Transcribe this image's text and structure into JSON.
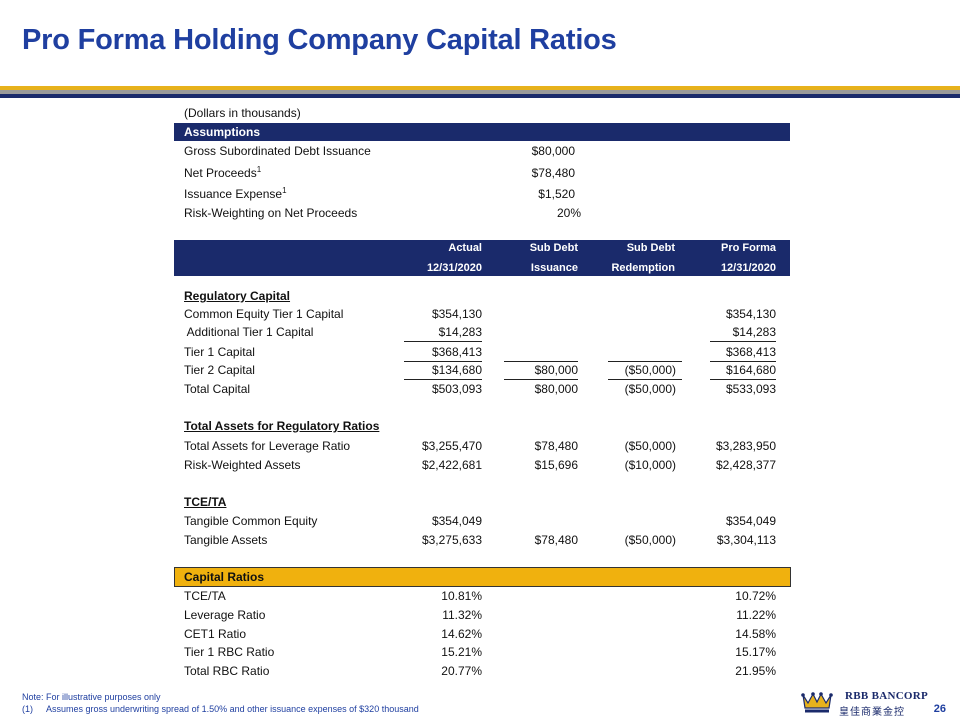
{
  "page": {
    "title": "Pro Forma Holding Company Capital Ratios",
    "page_number": "26"
  },
  "colors": {
    "navy": "#1a2a6b",
    "blue": "#1f3fa0",
    "gold": "#f0b10e"
  },
  "units_note": "(Dollars in thousands)",
  "assumptions": {
    "header": "Assumptions",
    "rows": [
      {
        "label": "Gross Subordinated Debt Issuance",
        "sup": "",
        "value": "$80,000"
      },
      {
        "label": "Net Proceeds",
        "sup": "1",
        "value": "$78,480"
      },
      {
        "label": "Issuance Expense",
        "sup": "1",
        "value": "$1,520"
      },
      {
        "label": "Risk-Weighting on Net Proceeds",
        "sup": "",
        "value": "20%"
      }
    ]
  },
  "columns": [
    {
      "line1": "Actual",
      "line2": "12/31/2020"
    },
    {
      "line1": "Sub Debt",
      "line2": "Issuance"
    },
    {
      "line1": "Sub Debt",
      "line2": "Redemption"
    },
    {
      "line1": "Pro Forma",
      "line2": "12/31/2020"
    }
  ],
  "regulatory_capital": {
    "header": "Regulatory Capital",
    "rows": [
      {
        "label": "Common Equity Tier 1 Capital",
        "values": [
          "$354,130",
          "",
          "",
          "$354,130"
        ]
      },
      {
        "label": " Additional Tier 1 Capital",
        "values": [
          "$14,283",
          "",
          "",
          "$14,283"
        ]
      },
      {
        "label": "Tier 1 Capital",
        "values": [
          "$368,413",
          "",
          "",
          "$368,413"
        ]
      },
      {
        "label": "Tier 2 Capital",
        "values": [
          "$134,680",
          "$80,000",
          "($50,000)",
          "$164,680"
        ]
      },
      {
        "label": "Total Capital",
        "values": [
          "$503,093",
          "$80,000",
          "($50,000)",
          "$533,093"
        ]
      }
    ]
  },
  "total_assets": {
    "header": "Total Assets for Regulatory Ratios",
    "rows": [
      {
        "label": "Total Assets for Leverage Ratio",
        "values": [
          "$3,255,470",
          "$78,480",
          "($50,000)",
          "$3,283,950"
        ]
      },
      {
        "label": "Risk-Weighted Assets",
        "values": [
          "$2,422,681",
          "$15,696",
          "($10,000)",
          "$2,428,377"
        ]
      }
    ]
  },
  "tce_ta": {
    "header": "TCE/TA",
    "rows": [
      {
        "label": "Tangible Common Equity",
        "values": [
          "$354,049",
          "",
          "",
          "$354,049"
        ]
      },
      {
        "label": "Tangible Assets",
        "values": [
          "$3,275,633",
          "$78,480",
          "($50,000)",
          "$3,304,113"
        ]
      }
    ]
  },
  "capital_ratios": {
    "header": "Capital Ratios",
    "rows": [
      {
        "label": "TCE/TA",
        "values": [
          "10.81%",
          "",
          "",
          "10.72%"
        ]
      },
      {
        "label": "Leverage Ratio",
        "values": [
          "11.32%",
          "",
          "",
          "11.22%"
        ]
      },
      {
        "label": "CET1 Ratio",
        "values": [
          "14.62%",
          "",
          "",
          "14.58%"
        ]
      },
      {
        "label": "Tier 1 RBC Ratio",
        "values": [
          "15.21%",
          "",
          "",
          "15.17%"
        ]
      },
      {
        "label": "Total RBC Ratio",
        "values": [
          "20.77%",
          "",
          "",
          "21.95%"
        ]
      }
    ]
  },
  "footnotes": {
    "note": "Note: For illustrative purposes only",
    "marker": "(1)",
    "text": "Assumes gross underwriting spread of 1.50% and other issuance expenses of $320 thousand"
  },
  "logo": {
    "line1": "RBB BANCORP",
    "line2": "皇佳商業金控",
    "icon": "crown-icon"
  }
}
